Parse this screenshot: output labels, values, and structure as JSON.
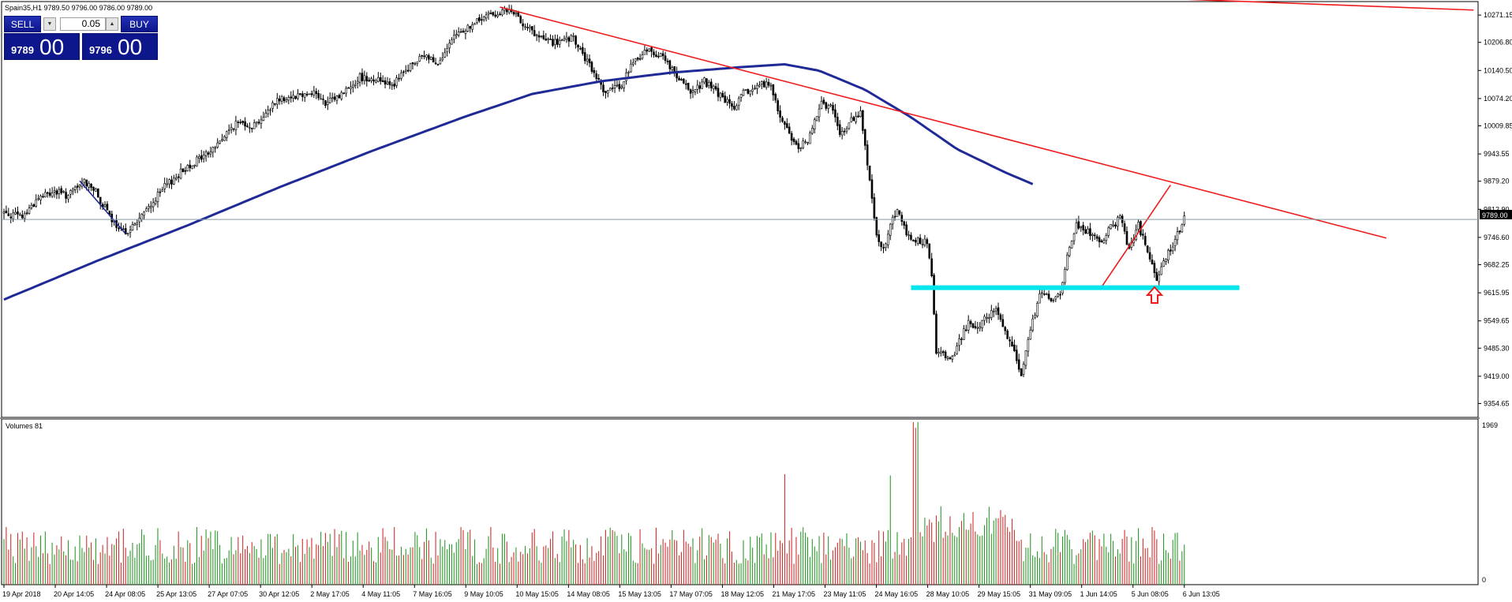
{
  "header": {
    "symbol_info": "Spain35,H1  9789.50 9796.00 9786.00 9789.00",
    "volume_label": "Volumes 81"
  },
  "trade_panel": {
    "sell_label": "SELL",
    "buy_label": "BUY",
    "lot": "0.05",
    "sell_price_small": "9789",
    "sell_price_big": "00",
    "buy_price_small": "9796",
    "buy_price_big": "00"
  },
  "colors": {
    "bull": "#2e9a2e",
    "bear": "#d23232",
    "trendline": "#ee1c1c",
    "moving_average": "#1f2a96",
    "support": "#00e5ee",
    "grid_line": "#7f9aa6",
    "price_tag_bg": "#000000"
  },
  "chart_data": {
    "type": "candlestick",
    "symbol": "Spain35",
    "timeframe": "H1",
    "y_range": [
      9322,
      10303
    ],
    "y_ticks": [
      "10271.15",
      "10206.80",
      "10140.50",
      "10074.20",
      "10009.85",
      "9943.55",
      "9879.20",
      "9812.90",
      "9746.60",
      "9682.25",
      "9615.95",
      "9549.65",
      "9485.30",
      "9419.00",
      "9354.65"
    ],
    "current_price": "9789.00",
    "x_tick_labels": [
      "19 Apr 2018",
      "20 Apr 14:05",
      "24 Apr 08:05",
      "25 Apr 13:05",
      "27 Apr 07:05",
      "30 Apr 12:05",
      "2 May 17:05",
      "4 May 11:05",
      "7 May 16:05",
      "9 May 10:05",
      "10 May 15:05",
      "14 May 08:05",
      "15 May 13:05",
      "17 May 07:05",
      "18 May 12:05",
      "21 May 17:05",
      "23 May 11:05",
      "24 May 16:05",
      "28 May 10:05",
      "29 May 15:05",
      "31 May 09:05",
      "1 Jun 14:05",
      "5 Jun 08:05",
      "6 Jun 13:05"
    ],
    "path_anchors": [
      [
        0,
        9805
      ],
      [
        8,
        9795
      ],
      [
        15,
        9840
      ],
      [
        22,
        9855
      ],
      [
        28,
        9845
      ],
      [
        35,
        9878
      ],
      [
        38,
        9870
      ],
      [
        50,
        9760
      ],
      [
        55,
        9765
      ],
      [
        62,
        9810
      ],
      [
        70,
        9865
      ],
      [
        80,
        9915
      ],
      [
        90,
        9950
      ],
      [
        100,
        10010
      ],
      [
        104,
        10020
      ],
      [
        108,
        10010
      ],
      [
        114,
        10035
      ],
      [
        118,
        10070
      ],
      [
        125,
        10080
      ],
      [
        135,
        10090
      ],
      [
        140,
        10060
      ],
      [
        147,
        10085
      ],
      [
        155,
        10125
      ],
      [
        162,
        10120
      ],
      [
        170,
        10110
      ],
      [
        177,
        10150
      ],
      [
        183,
        10175
      ],
      [
        190,
        10160
      ],
      [
        197,
        10225
      ],
      [
        203,
        10245
      ],
      [
        212,
        10275
      ],
      [
        220,
        10280
      ],
      [
        225,
        10260
      ],
      [
        232,
        10220
      ],
      [
        240,
        10205
      ],
      [
        248,
        10215
      ],
      [
        255,
        10150
      ],
      [
        262,
        10090
      ],
      [
        268,
        10100
      ],
      [
        273,
        10150
      ],
      [
        280,
        10190
      ],
      [
        288,
        10170
      ],
      [
        293,
        10120
      ],
      [
        300,
        10090
      ],
      [
        305,
        10115
      ],
      [
        312,
        10080
      ],
      [
        318,
        10050
      ],
      [
        322,
        10085
      ],
      [
        330,
        10110
      ],
      [
        334,
        10105
      ],
      [
        337,
        10040
      ],
      [
        345,
        9960
      ],
      [
        350,
        9975
      ],
      [
        356,
        10060
      ],
      [
        360,
        10055
      ],
      [
        364,
        9990
      ],
      [
        370,
        10030
      ],
      [
        373,
        10040
      ],
      [
        375,
        9960
      ],
      [
        380,
        9750
      ],
      [
        383,
        9720
      ],
      [
        387,
        9800
      ],
      [
        390,
        9810
      ],
      [
        393,
        9750
      ],
      [
        397,
        9735
      ],
      [
        402,
        9740
      ],
      [
        404,
        9660
      ],
      [
        406,
        9480
      ],
      [
        412,
        9455
      ],
      [
        420,
        9545
      ],
      [
        425,
        9540
      ],
      [
        432,
        9580
      ],
      [
        436,
        9530
      ],
      [
        440,
        9470
      ],
      [
        443,
        9420
      ],
      [
        448,
        9550
      ],
      [
        452,
        9625
      ],
      [
        456,
        9600
      ],
      [
        460,
        9615
      ],
      [
        463,
        9700
      ],
      [
        467,
        9780
      ],
      [
        472,
        9760
      ],
      [
        478,
        9740
      ],
      [
        482,
        9770
      ],
      [
        486,
        9790
      ],
      [
        490,
        9720
      ],
      [
        494,
        9775
      ],
      [
        498,
        9720
      ],
      [
        502,
        9640
      ],
      [
        506,
        9700
      ],
      [
        510,
        9735
      ],
      [
        514,
        9800
      ]
    ],
    "ma_anchors": [
      [
        0,
        9600
      ],
      [
        40,
        9690
      ],
      [
        80,
        9775
      ],
      [
        120,
        9865
      ],
      [
        160,
        9950
      ],
      [
        200,
        10030
      ],
      [
        230,
        10085
      ],
      [
        260,
        10115
      ],
      [
        290,
        10135
      ],
      [
        320,
        10148
      ],
      [
        340,
        10155
      ],
      [
        355,
        10140
      ],
      [
        375,
        10095
      ],
      [
        395,
        10030
      ],
      [
        415,
        9955
      ],
      [
        436,
        9900
      ],
      [
        449,
        9870
      ]
    ],
    "trendlines": [
      {
        "from": [
          216,
          10290
        ],
        "to": [
          602,
          9745
        ]
      },
      {
        "from": [
          33,
          9880
        ],
        "to": [
          53,
          9755
        ]
      },
      {
        "from": [
          457,
          10320
        ],
        "to": [
          640,
          10283
        ]
      },
      {
        "from": [
          478,
          9630
        ],
        "to": [
          508,
          9870
        ]
      }
    ],
    "support_zone": {
      "from_bar": 395,
      "to_bar": 538,
      "price": 9628
    },
    "volume_range": [
      0,
      1969
    ],
    "volume_ticks": [
      "1969",
      "0"
    ]
  }
}
